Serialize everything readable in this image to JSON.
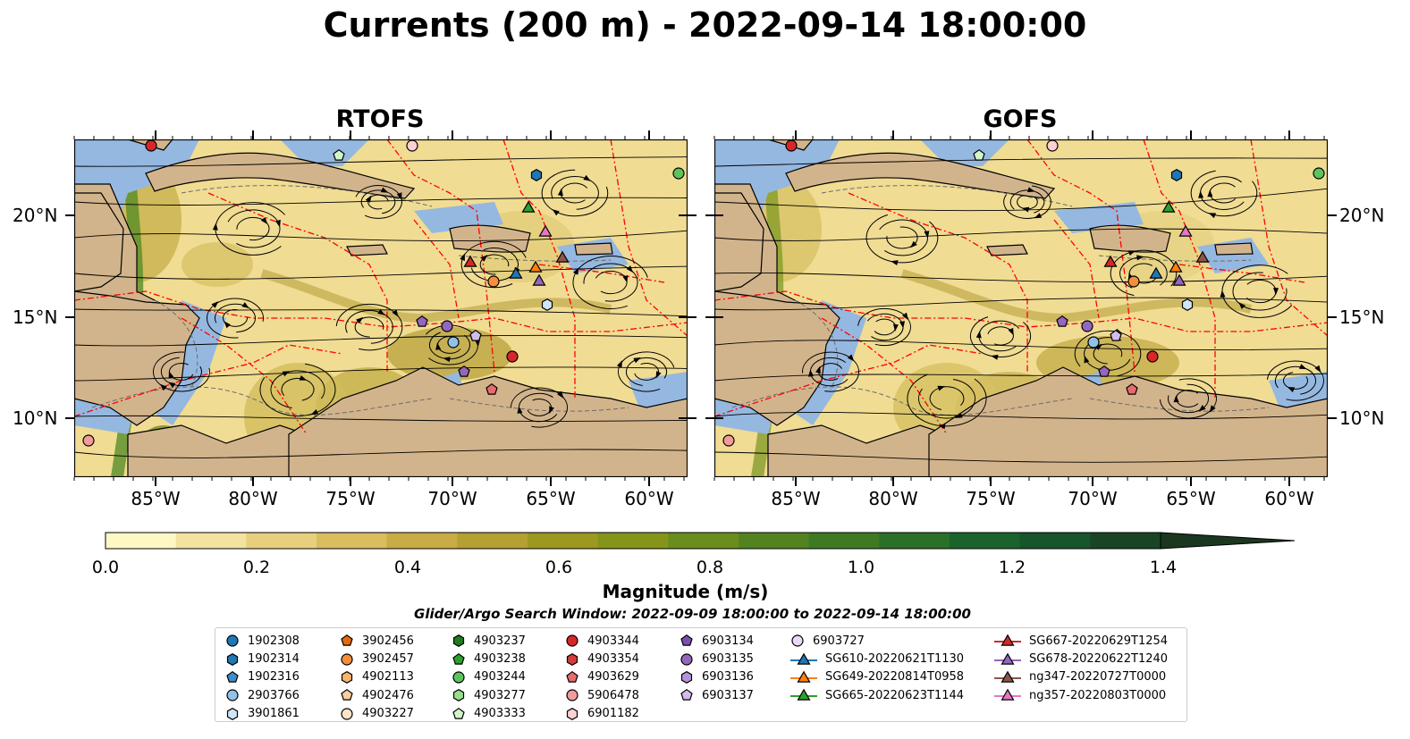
{
  "title": "Currents (200 m) - 2022-09-14 18:00:00",
  "panels": [
    {
      "title": "RTOFS"
    },
    {
      "title": "GOFS"
    }
  ],
  "lat_labels": [
    "20°N",
    "15°N",
    "10°N"
  ],
  "lon_labels": [
    "85°W",
    "80°W",
    "75°W",
    "70°W",
    "65°W",
    "60°W"
  ],
  "colorbar": {
    "label": "Magnitude (m/s)",
    "ticks": [
      "0.0",
      "0.2",
      "0.4",
      "0.6",
      "0.8",
      "1.0",
      "1.2",
      "1.4"
    ],
    "range": [
      0,
      1.5
    ],
    "colors": [
      "#fdf8c4",
      "#f3e3a0",
      "#e7cf7e",
      "#d9bd5f",
      "#c9ac46",
      "#b5a032",
      "#9d9920",
      "#84951a",
      "#6b8d1c",
      "#538320",
      "#3e7a24",
      "#2a7029",
      "#1b632c",
      "#17552a",
      "#194524",
      "#1b371f",
      "#1c2b19"
    ]
  },
  "search_window": "Glider/Argo Search Window: 2022-09-09 18:00:00 to 2022-09-14 18:00:00",
  "legend": {
    "columns": [
      [
        {
          "label": "1902308",
          "marker": "circle",
          "color": "#1f77b4"
        },
        {
          "label": "1902314",
          "marker": "hexagon",
          "color": "#1f77b4"
        },
        {
          "label": "1902316",
          "marker": "pentagon",
          "color": "#3e8ccc"
        },
        {
          "label": "2903766",
          "marker": "circle",
          "color": "#8fc2e8"
        },
        {
          "label": "3901861",
          "marker": "hexagon",
          "color": "#cfe6f6"
        }
      ],
      [
        {
          "label": "3902456",
          "marker": "pentagon",
          "color": "#e8690c"
        },
        {
          "label": "3902457",
          "marker": "circle",
          "color": "#f58f3a"
        },
        {
          "label": "4902113",
          "marker": "hexagon",
          "color": "#f9b36f"
        },
        {
          "label": "4902476",
          "marker": "pentagon",
          "color": "#fbcc9c"
        },
        {
          "label": "4903227",
          "marker": "circle",
          "color": "#fde4c9"
        }
      ],
      [
        {
          "label": "4903237",
          "marker": "hexagon",
          "color": "#1e7d1e"
        },
        {
          "label": "4903238",
          "marker": "pentagon",
          "color": "#2ca02c"
        },
        {
          "label": "4903244",
          "marker": "circle",
          "color": "#5cc45c"
        },
        {
          "label": "4903277",
          "marker": "hexagon",
          "color": "#98df8a"
        },
        {
          "label": "4903333",
          "marker": "pentagon",
          "color": "#d2f5c8"
        }
      ],
      [
        {
          "label": "4903344",
          "marker": "circle",
          "color": "#d62728"
        },
        {
          "label": "4903354",
          "marker": "hexagon",
          "color": "#d63a3a"
        },
        {
          "label": "4903629",
          "marker": "pentagon",
          "color": "#e86c6c"
        },
        {
          "label": "5906478",
          "marker": "circle",
          "color": "#f29b9b"
        },
        {
          "label": "6901182",
          "marker": "hexagon",
          "color": "#fbd0d0"
        }
      ],
      [
        {
          "label": "6903134",
          "marker": "pentagon",
          "color": "#7b4fb0"
        },
        {
          "label": "6903135",
          "marker": "circle",
          "color": "#9467bd"
        },
        {
          "label": "6903136",
          "marker": "hexagon",
          "color": "#b394d9"
        },
        {
          "label": "6903137",
          "marker": "pentagon",
          "color": "#d2bcec"
        }
      ],
      [
        {
          "label": "6903727",
          "marker": "circle",
          "color": "#e9d8f6"
        },
        {
          "label": "SG610-20220621T1130",
          "marker": "triangle",
          "color": "#1f77b4"
        },
        {
          "label": "SG649-20220814T0958",
          "marker": "triangle",
          "color": "#ff7f0e"
        },
        {
          "label": "SG665-20220623T1144",
          "marker": "triangle",
          "color": "#2ca02c"
        }
      ],
      [
        {
          "label": "SG667-20220629T1254",
          "marker": "triangle",
          "color": "#d62728"
        },
        {
          "label": "SG678-20220622T1240",
          "marker": "triangle",
          "color": "#9467bd"
        },
        {
          "label": "ng347-20220727T0000",
          "marker": "triangle",
          "color": "#8c564b"
        },
        {
          "label": "ng357-20220803T0000",
          "marker": "triangle",
          "color": "#e377c2"
        }
      ]
    ]
  },
  "colors": {
    "land": "#d2b48c",
    "shallow": "#95b8e0",
    "eez": "#ff0000"
  }
}
